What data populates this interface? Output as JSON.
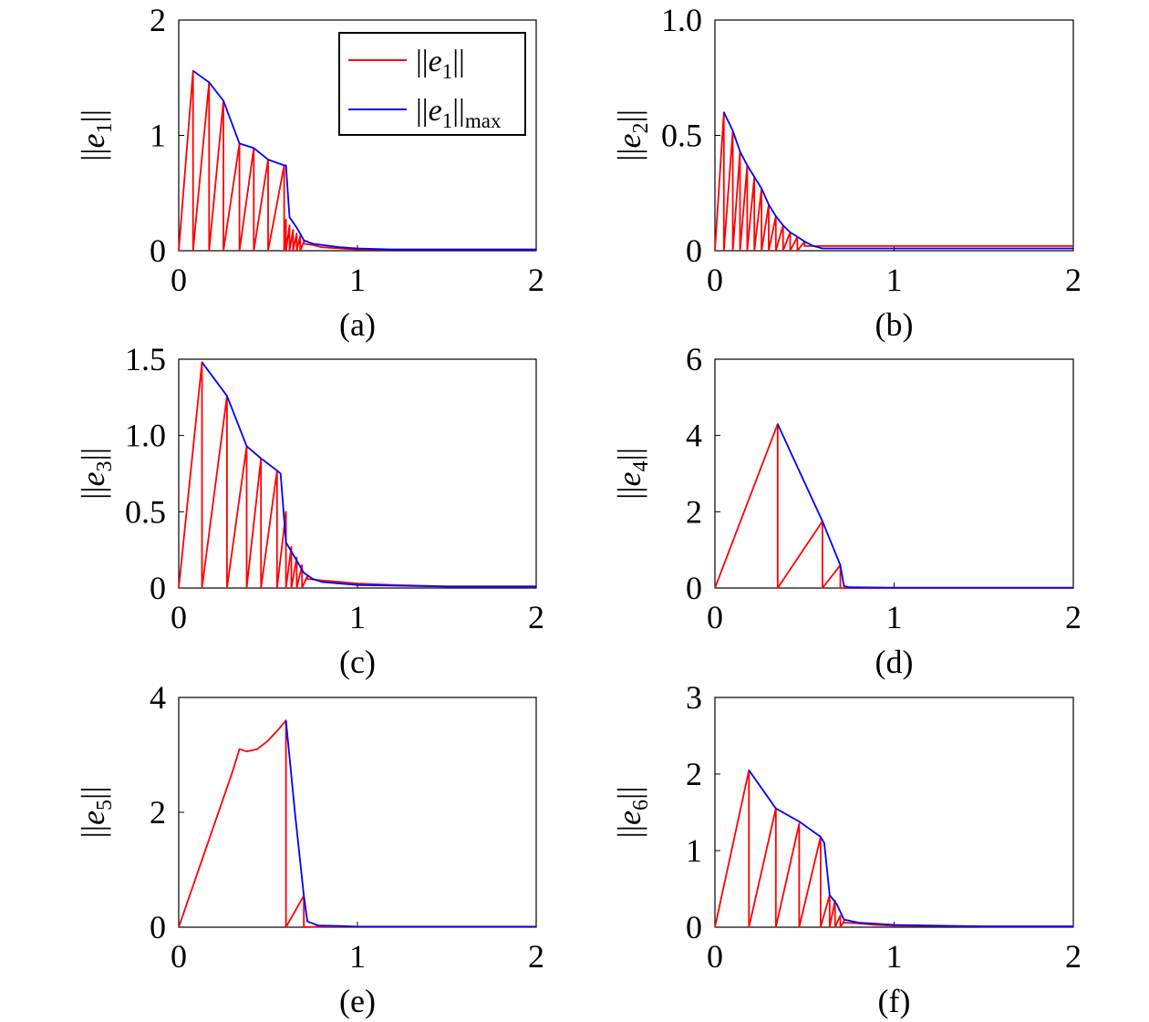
{
  "chart_data": [
    {
      "type": "line",
      "caption": "(a)",
      "ylabel": {
        "base": "e",
        "sub": "1"
      },
      "xlim": [
        0,
        2
      ],
      "ylim": [
        0,
        2
      ],
      "xticks": [
        "0",
        "1",
        "2"
      ],
      "yticks": [
        "0",
        "1",
        "2"
      ],
      "legend": {
        "position": "top-right",
        "items": [
          {
            "base": "e",
            "sub": "1",
            "suffix": "",
            "color": "#ff0000"
          },
          {
            "base": "e",
            "sub": "1",
            "suffix": "max",
            "color": "#0000ff"
          }
        ]
      },
      "series": [
        {
          "color": "#ff0000",
          "x": [
            0,
            0.08,
            0.08,
            0.17,
            0.17,
            0.25,
            0.25,
            0.34,
            0.34,
            0.42,
            0.42,
            0.5,
            0.5,
            0.59,
            0.59,
            0.6,
            0.6,
            0.62,
            0.62,
            0.64,
            0.64,
            0.66,
            0.66,
            0.68,
            0.68,
            0.7,
            0.7,
            0.75,
            0.8,
            0.9,
            1.0,
            1.2,
            1.5,
            1.8,
            2.0
          ],
          "y": [
            0,
            1.56,
            0,
            1.46,
            0,
            1.3,
            0,
            0.93,
            0,
            0.89,
            0,
            0.79,
            0,
            0.74,
            0,
            0.27,
            0,
            0.22,
            0,
            0.18,
            0,
            0.15,
            0,
            0.13,
            0,
            0.08,
            0.06,
            0.05,
            0.03,
            0.02,
            0.01,
            0.01,
            0.01,
            0.01,
            0.01
          ]
        },
        {
          "color": "#0000ff",
          "x": [
            0.08,
            0.17,
            0.25,
            0.34,
            0.42,
            0.5,
            0.59,
            0.6,
            0.62,
            0.66,
            0.7,
            0.75,
            0.8,
            0.9,
            1.0,
            1.2,
            1.5,
            1.8,
            2.0
          ],
          "y": [
            1.56,
            1.46,
            1.3,
            0.93,
            0.89,
            0.79,
            0.74,
            0.74,
            0.29,
            0.2,
            0.09,
            0.06,
            0.05,
            0.03,
            0.02,
            0.01,
            0.01,
            0.01,
            0.01
          ]
        }
      ]
    },
    {
      "type": "line",
      "caption": "(b)",
      "ylabel": {
        "base": "e",
        "sub": "2"
      },
      "xlim": [
        0,
        2
      ],
      "ylim": [
        0,
        1.0
      ],
      "xticks": [
        "0",
        "1",
        "2"
      ],
      "yticks": [
        "0",
        "0.5",
        "1.0"
      ],
      "series": [
        {
          "color": "#ff0000",
          "x": [
            0,
            0.05,
            0.05,
            0.1,
            0.1,
            0.14,
            0.14,
            0.18,
            0.18,
            0.22,
            0.22,
            0.26,
            0.26,
            0.3,
            0.3,
            0.34,
            0.34,
            0.38,
            0.38,
            0.42,
            0.42,
            0.46,
            0.46,
            0.5,
            0.5,
            0.55,
            0.6,
            0.8,
            1.0,
            1.5,
            2.0
          ],
          "y": [
            0,
            0.6,
            0,
            0.52,
            0,
            0.43,
            0,
            0.37,
            0,
            0.32,
            0,
            0.27,
            0,
            0.2,
            0,
            0.15,
            0,
            0.11,
            0,
            0.08,
            0,
            0.06,
            0,
            0.04,
            0.02,
            0.02,
            0.02,
            0.02,
            0.02,
            0.02,
            0.02
          ]
        },
        {
          "color": "#0000ff",
          "x": [
            0.05,
            0.1,
            0.14,
            0.18,
            0.22,
            0.26,
            0.3,
            0.34,
            0.38,
            0.42,
            0.46,
            0.5,
            0.55,
            0.6,
            0.8,
            1.0,
            1.5,
            2.0
          ],
          "y": [
            0.6,
            0.52,
            0.43,
            0.37,
            0.32,
            0.27,
            0.2,
            0.15,
            0.11,
            0.08,
            0.06,
            0.04,
            0.02,
            0.01,
            0.01,
            0.01,
            0.01,
            0.01
          ]
        }
      ]
    },
    {
      "type": "line",
      "caption": "(c)",
      "ylabel": {
        "base": "e",
        "sub": "3"
      },
      "xlim": [
        0,
        2
      ],
      "ylim": [
        0,
        1.5
      ],
      "xticks": [
        "0",
        "1",
        "2"
      ],
      "yticks": [
        "0",
        "0.5",
        "1.0",
        "1.5"
      ],
      "series": [
        {
          "color": "#ff0000",
          "x": [
            0,
            0.13,
            0.13,
            0.27,
            0.27,
            0.38,
            0.38,
            0.46,
            0.46,
            0.55,
            0.55,
            0.6,
            0.6,
            0.63,
            0.63,
            0.66,
            0.66,
            0.69,
            0.69,
            0.72,
            0.72,
            0.8,
            0.9,
            1.0,
            1.2,
            1.5,
            2.0
          ],
          "y": [
            0,
            1.48,
            0,
            1.26,
            0,
            0.93,
            0,
            0.85,
            0,
            0.77,
            0,
            0.5,
            0,
            0.27,
            0,
            0.2,
            0,
            0.15,
            0,
            0.08,
            0.06,
            0.05,
            0.04,
            0.03,
            0.02,
            0.01,
            0.01
          ]
        },
        {
          "color": "#0000ff",
          "x": [
            0.13,
            0.27,
            0.38,
            0.46,
            0.55,
            0.57,
            0.6,
            0.65,
            0.7,
            0.75,
            0.8,
            1.0,
            1.5,
            2.0
          ],
          "y": [
            1.48,
            1.26,
            0.93,
            0.85,
            0.77,
            0.75,
            0.3,
            0.2,
            0.1,
            0.06,
            0.04,
            0.02,
            0.01,
            0.01
          ]
        }
      ]
    },
    {
      "type": "line",
      "caption": "(d)",
      "ylabel": {
        "base": "e",
        "sub": "4"
      },
      "xlim": [
        0,
        2
      ],
      "ylim": [
        0,
        6
      ],
      "xticks": [
        "0",
        "1",
        "2"
      ],
      "yticks": [
        "0",
        "2",
        "4",
        "6"
      ],
      "series": [
        {
          "color": "#ff0000",
          "x": [
            0,
            0.35,
            0.35,
            0.6,
            0.6,
            0.7,
            0.7,
            0.72,
            1.0,
            2.0
          ],
          "y": [
            0,
            4.3,
            0,
            1.75,
            0,
            0.6,
            0,
            0,
            0,
            0
          ]
        },
        {
          "color": "#0000ff",
          "x": [
            0.35,
            0.6,
            0.7,
            0.72,
            0.75,
            1.0,
            1.5,
            2.0
          ],
          "y": [
            4.3,
            1.75,
            0.6,
            0.05,
            0.02,
            0.01,
            0.01,
            0.01
          ]
        }
      ]
    },
    {
      "type": "line",
      "caption": "(e)",
      "ylabel": {
        "base": "e",
        "sub": "5"
      },
      "xlim": [
        0,
        2
      ],
      "ylim": [
        0,
        4
      ],
      "xticks": [
        "0",
        "1",
        "2"
      ],
      "yticks": [
        "0",
        "2",
        "4"
      ],
      "series": [
        {
          "color": "#ff0000",
          "x": [
            0,
            0.1,
            0.2,
            0.3,
            0.34,
            0.38,
            0.44,
            0.5,
            0.56,
            0.6,
            0.6,
            0.7,
            0.7,
            0.8,
            1.0,
            1.5,
            2.0
          ],
          "y": [
            0,
            0.9,
            1.8,
            2.7,
            3.1,
            3.06,
            3.1,
            3.25,
            3.45,
            3.6,
            0,
            0.55,
            0,
            0.01,
            0.01,
            0.01,
            0.01
          ]
        },
        {
          "color": "#0000ff",
          "x": [
            0.6,
            0.65,
            0.7,
            0.72,
            0.78,
            0.9,
            1.0,
            1.5,
            2.0
          ],
          "y": [
            3.6,
            2.0,
            0.55,
            0.1,
            0.03,
            0.02,
            0.01,
            0.01,
            0.01
          ]
        }
      ]
    },
    {
      "type": "line",
      "caption": "(f)",
      "ylabel": {
        "base": "e",
        "sub": "6"
      },
      "xlim": [
        0,
        2
      ],
      "ylim": [
        0,
        3
      ],
      "xticks": [
        "0",
        "1",
        "2"
      ],
      "yticks": [
        "0",
        "1",
        "2",
        "3"
      ],
      "series": [
        {
          "color": "#ff0000",
          "x": [
            0,
            0.19,
            0.19,
            0.34,
            0.34,
            0.47,
            0.47,
            0.59,
            0.59,
            0.64,
            0.64,
            0.67,
            0.67,
            0.7,
            0.7,
            0.72,
            0.72,
            0.8,
            0.9,
            1.0,
            1.5,
            2.0
          ],
          "y": [
            0,
            2.05,
            0,
            1.55,
            0,
            1.35,
            0,
            1.18,
            0,
            0.42,
            0,
            0.35,
            0,
            0.15,
            0,
            0.08,
            0.06,
            0.05,
            0.03,
            0.02,
            0.01,
            0.01
          ]
        },
        {
          "color": "#0000ff",
          "x": [
            0.19,
            0.34,
            0.47,
            0.59,
            0.61,
            0.64,
            0.68,
            0.72,
            0.8,
            1.0,
            1.5,
            2.0
          ],
          "y": [
            2.05,
            1.55,
            1.38,
            1.18,
            1.1,
            0.42,
            0.3,
            0.1,
            0.06,
            0.03,
            0.01,
            0.01
          ]
        }
      ]
    }
  ]
}
